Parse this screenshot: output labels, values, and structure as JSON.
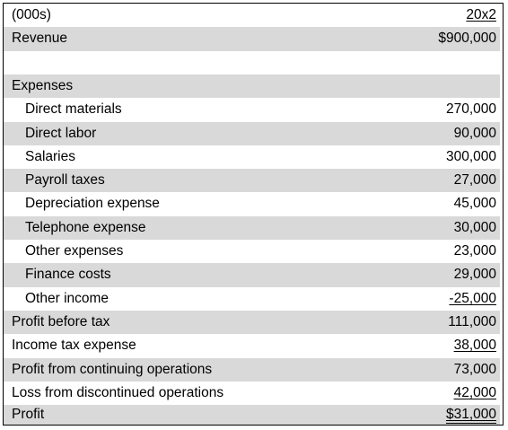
{
  "header": {
    "unit_label": "(000s)",
    "year_label": "20x2"
  },
  "revenue": {
    "label": "Revenue",
    "value": "$900,000"
  },
  "expenses": {
    "heading": "Expenses",
    "items": [
      {
        "label": "Direct materials",
        "value": "270,000"
      },
      {
        "label": "Direct labor",
        "value": "90,000"
      },
      {
        "label": "Salaries",
        "value": "300,000"
      },
      {
        "label": "Payroll taxes",
        "value": "27,000"
      },
      {
        "label": "Depreciation expense",
        "value": "45,000"
      },
      {
        "label": "Telephone expense",
        "value": "30,000"
      },
      {
        "label": "Other expenses",
        "value": "23,000"
      },
      {
        "label": "Finance costs",
        "value": "29,000"
      },
      {
        "label": "Other income",
        "value": "-25,000"
      }
    ]
  },
  "totals": {
    "profit_before_tax": {
      "label": "Profit before tax",
      "value": "111,000"
    },
    "income_tax": {
      "label": "Income tax expense",
      "value": "38,000"
    },
    "continuing": {
      "label": "Profit from continuing operations",
      "value": "73,000"
    },
    "discontinued": {
      "label": "Loss from discontinued operations",
      "value": "42,000"
    },
    "profit": {
      "label": "Profit",
      "value": "$31,000"
    }
  },
  "colors": {
    "shade": "#d9d9d9",
    "border": "#000000"
  }
}
